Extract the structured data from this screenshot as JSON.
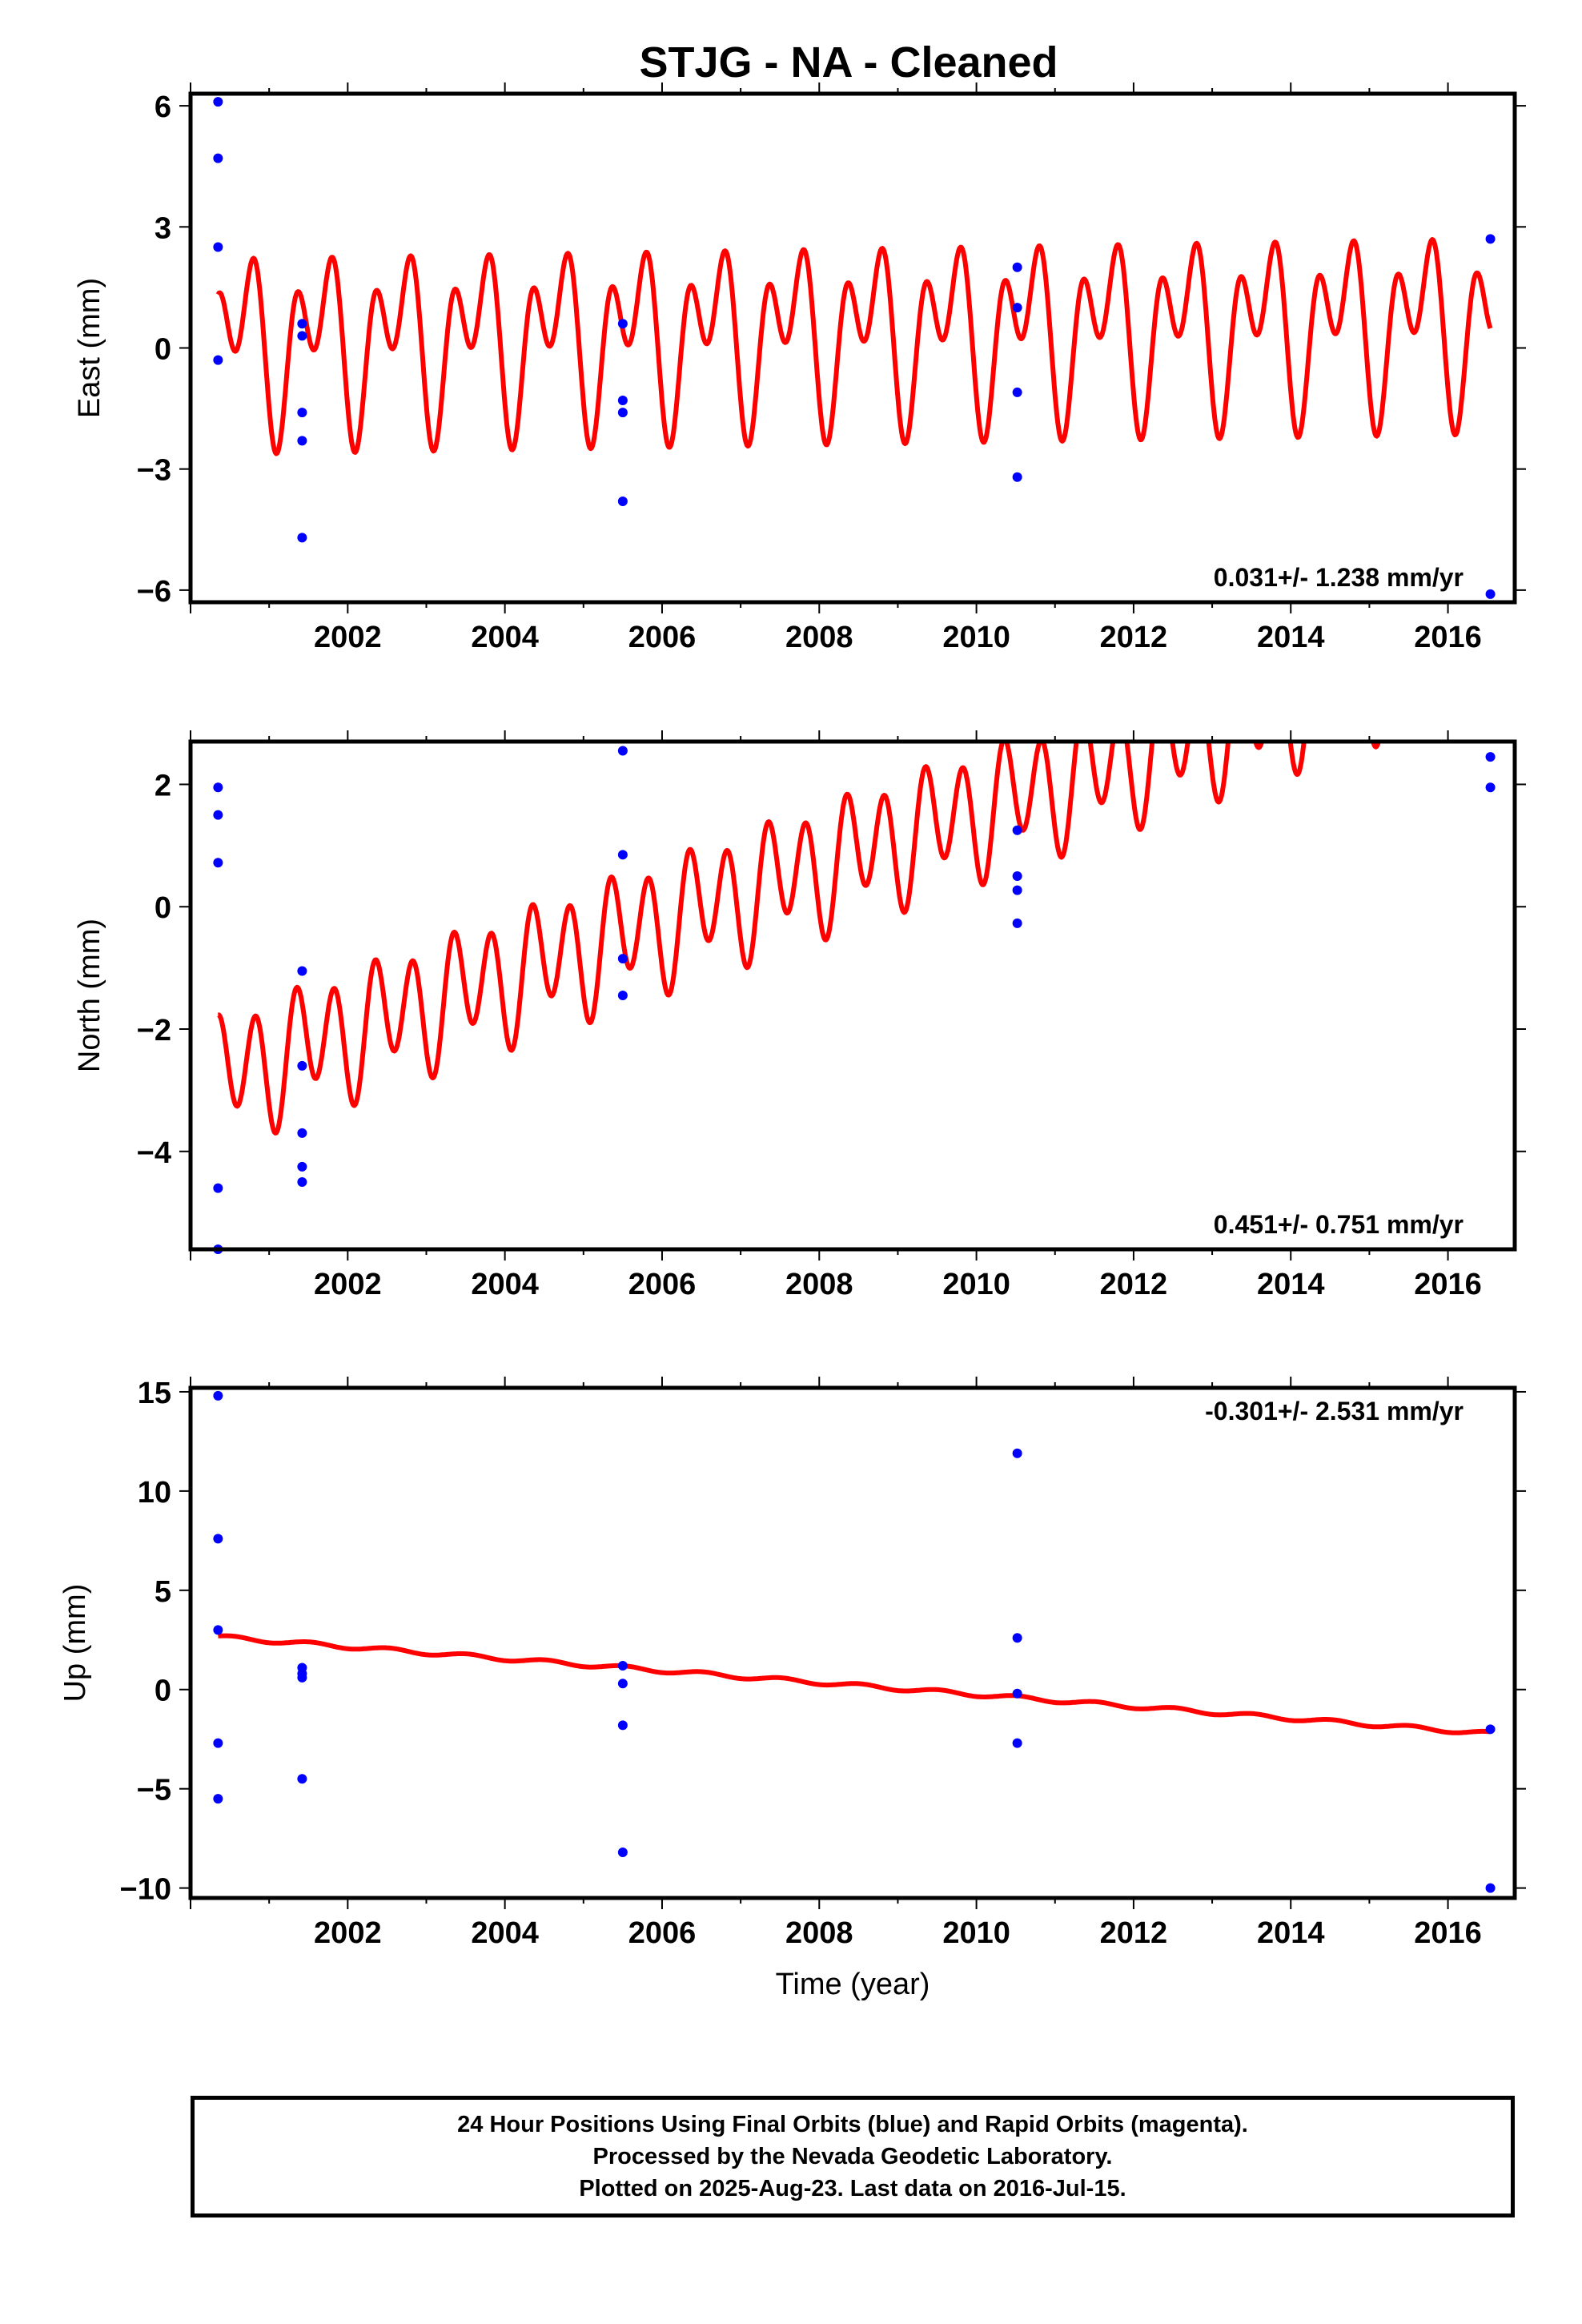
{
  "title": "STJG  - NA - Cleaned",
  "footer": {
    "line1": "24 Hour Positions Using Final Orbits (blue) and Rapid Orbits (magenta).",
    "line2": "Processed by the Nevada Geodetic Laboratory.",
    "line3": "Plotted on 2025-Aug-23. Last data on 2016-Jul-15."
  },
  "colors": {
    "data": "#0000ff",
    "model": "#ff0000",
    "frame": "#000000"
  },
  "chart_data": [
    {
      "type": "scatter",
      "component": "east",
      "ylabel": "East (mm)",
      "xlabel": "",
      "xlim": [
        2000.0,
        2016.85
      ],
      "ylim": [
        -6.3,
        6.3
      ],
      "x_ticks": [
        2002,
        2004,
        2006,
        2008,
        2010,
        2012,
        2014,
        2016
      ],
      "y_ticks": [
        -6,
        -3,
        0,
        3,
        6
      ],
      "y_tick_labels": [
        "−6",
        "−3",
        "0",
        "3",
        "6"
      ],
      "rate_label": "0.031+/- 1.238 mm/yr",
      "rate_label_position": "bottom-right",
      "observations": {
        "x": [
          2000.35,
          2000.35,
          2000.35,
          2000.35,
          2001.42,
          2001.42,
          2001.42,
          2001.42,
          2001.42,
          2005.5,
          2005.5,
          2005.5,
          2005.5,
          2010.52,
          2010.52,
          2010.52,
          2010.52,
          2016.54,
          2016.54
        ],
        "y": [
          6.1,
          4.7,
          2.5,
          -0.3,
          0.6,
          0.3,
          -1.6,
          -2.3,
          -4.7,
          0.6,
          -1.3,
          -1.6,
          -3.8,
          2.0,
          1.0,
          -1.1,
          -3.2,
          2.7,
          -6.1
        ]
      },
      "model": {
        "x_start": 2000.35,
        "x_end": 2016.54,
        "intercept_at_start": 0.15,
        "rate_mm_per_yr": 0.031,
        "annual_amplitude": 1.35,
        "annual_phase": -0.22,
        "semiannual_amplitude": 1.5,
        "semiannual_phase": 1.78
      }
    },
    {
      "type": "scatter",
      "component": "north",
      "ylabel": "North (mm)",
      "xlabel": "",
      "xlim": [
        2000.0,
        2016.85
      ],
      "ylim": [
        -5.6,
        2.7
      ],
      "x_ticks": [
        2002,
        2004,
        2006,
        2008,
        2010,
        2012,
        2014,
        2016
      ],
      "y_ticks": [
        -4,
        -2,
        0,
        2
      ],
      "y_tick_labels": [
        "−4",
        "−2",
        "0",
        "2"
      ],
      "rate_label": "0.451+/- 0.751 mm/yr",
      "rate_label_position": "bottom-right",
      "observations": {
        "x": [
          2000.35,
          2000.35,
          2000.35,
          2000.35,
          2000.35,
          2001.42,
          2001.42,
          2001.42,
          2001.42,
          2001.42,
          2005.5,
          2005.5,
          2005.5,
          2005.5,
          2010.52,
          2010.52,
          2010.52,
          2010.52,
          2016.54,
          2016.54
        ],
        "y": [
          1.95,
          1.5,
          0.72,
          -4.6,
          -5.6,
          -1.05,
          -2.6,
          -3.7,
          -4.25,
          -4.5,
          2.55,
          0.85,
          -0.85,
          -1.45,
          1.25,
          0.5,
          0.27,
          -0.27,
          2.45,
          1.95
        ]
      },
      "model": {
        "x_start": 2000.35,
        "x_end": 2016.54,
        "intercept_at_start": -2.8,
        "rate_mm_per_yr": 0.451,
        "annual_amplitude": 0.35,
        "annual_phase": 0.4,
        "semiannual_amplitude": 0.9,
        "semiannual_phase": 1.7
      }
    },
    {
      "type": "scatter",
      "component": "up",
      "ylabel": "Up (mm)",
      "xlabel": "Time (year)",
      "xlim": [
        2000.0,
        2016.85
      ],
      "ylim": [
        -10.5,
        15.2
      ],
      "x_ticks": [
        2002,
        2004,
        2006,
        2008,
        2010,
        2012,
        2014,
        2016
      ],
      "y_ticks": [
        -10,
        -5,
        0,
        5,
        10,
        15
      ],
      "y_tick_labels": [
        "−10",
        "−5",
        "0",
        "5",
        "10",
        "15"
      ],
      "rate_label": "-0.301+/- 2.531 mm/yr",
      "rate_label_position": "top-right",
      "observations": {
        "x": [
          2000.35,
          2000.35,
          2000.35,
          2000.35,
          2000.35,
          2001.42,
          2001.42,
          2001.42,
          2001.42,
          2005.5,
          2005.5,
          2005.5,
          2005.5,
          2010.52,
          2010.52,
          2010.52,
          2010.52,
          2016.54,
          2016.54
        ],
        "y": [
          14.8,
          7.6,
          3.0,
          -2.7,
          -5.5,
          1.1,
          0.8,
          0.6,
          -4.5,
          1.2,
          0.3,
          -1.8,
          -8.2,
          11.9,
          2.6,
          -0.2,
          -2.7,
          -2.0,
          -10.0
        ]
      },
      "model": {
        "x_start": 2000.35,
        "x_end": 2016.54,
        "intercept_at_start": 2.65,
        "rate_mm_per_yr": -0.301,
        "annual_amplitude": 0.1,
        "annual_phase": 0.5,
        "semiannual_amplitude": 0.0,
        "semiannual_phase": 0.0
      }
    }
  ]
}
